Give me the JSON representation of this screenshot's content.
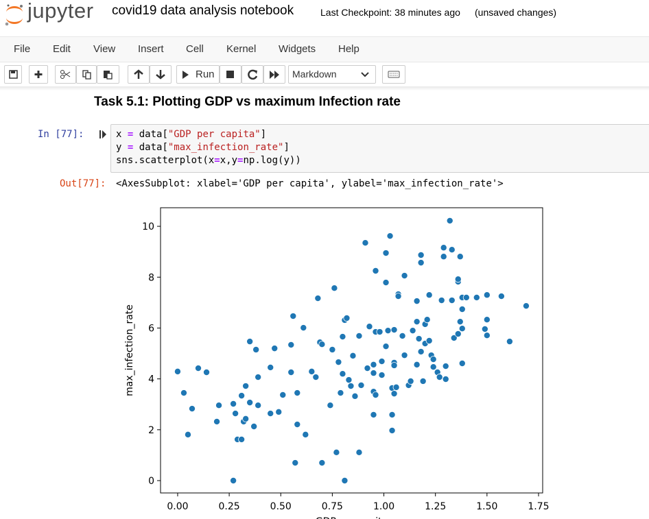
{
  "header": {
    "logo_text": "jupyter",
    "title": "covid19 data analysis notebook",
    "checkpoint": "Last Checkpoint: 38 minutes ago",
    "status": "(unsaved changes)"
  },
  "menu": [
    "File",
    "Edit",
    "View",
    "Insert",
    "Cell",
    "Kernel",
    "Widgets",
    "Help"
  ],
  "toolbar": {
    "run": "Run",
    "cell_type": "Markdown"
  },
  "notebook": {
    "heading": "Task 5.1: Plotting GDP vs maximum Infection rate",
    "input_prompt": "In [77]:",
    "code": [
      [
        "x ",
        "=",
        " data[",
        "\"GDP per capita\"",
        "]"
      ],
      [
        "y ",
        "=",
        " data[",
        "\"max_infection_rate\"",
        "]"
      ],
      [
        "sns.scatterplot(x",
        "=",
        "x,y",
        "=",
        "np.log(y))"
      ]
    ],
    "output_prompt": "Out[77]:",
    "output": "<AxesSubplot: xlabel='GDP per capita', ylabel='max_infection_rate'>"
  },
  "chart_data": {
    "type": "scatter",
    "xlabel": "GDP per capita",
    "ylabel": "max_infection_rate",
    "color": "#1f77b4",
    "x": [
      0.0,
      0.03,
      0.05,
      0.07,
      0.1,
      0.14,
      0.19,
      0.2,
      0.27,
      0.28,
      0.27,
      0.29,
      0.31,
      0.31,
      0.33,
      0.32,
      0.33,
      0.35,
      0.35,
      0.37,
      0.38,
      0.39,
      0.39,
      0.45,
      0.45,
      0.47,
      0.49,
      0.51,
      0.55,
      0.55,
      0.56,
      0.57,
      0.58,
      0.58,
      0.61,
      0.62,
      0.65,
      0.67,
      0.68,
      0.69,
      0.7,
      0.7,
      0.74,
      0.75,
      0.76,
      0.77,
      0.78,
      0.79,
      0.8,
      0.8,
      0.81,
      0.82,
      0.81,
      0.83,
      0.84,
      0.85,
      0.86,
      0.88,
      0.88,
      0.89,
      0.91,
      0.92,
      0.93,
      0.95,
      0.95,
      0.95,
      0.95,
      0.96,
      0.96,
      0.96,
      0.98,
      0.99,
      0.99,
      1.01,
      1.01,
      1.01,
      1.02,
      1.03,
      1.04,
      1.04,
      1.04,
      1.05,
      1.05,
      1.05,
      1.05,
      1.06,
      1.07,
      1.07,
      1.09,
      1.1,
      1.1,
      1.12,
      1.13,
      1.14,
      1.16,
      1.16,
      1.16,
      1.17,
      1.18,
      1.18,
      1.18,
      1.19,
      1.2,
      1.2,
      1.21,
      1.22,
      1.22,
      1.23,
      1.24,
      1.24,
      1.26,
      1.27,
      1.28,
      1.29,
      1.29,
      1.3,
      1.3,
      1.32,
      1.33,
      1.33,
      1.34,
      1.36,
      1.36,
      1.36,
      1.37,
      1.37,
      1.38,
      1.38,
      1.38,
      1.38,
      1.4,
      1.45,
      1.49,
      1.5,
      1.5,
      1.5,
      1.57,
      1.61,
      1.69
    ],
    "values": [
      4.29,
      3.45,
      1.81,
      2.83,
      4.42,
      4.26,
      2.32,
      2.96,
      3.02,
      2.64,
      0.0,
      1.62,
      1.62,
      3.34,
      3.72,
      2.32,
      2.43,
      5.47,
      3.07,
      2.13,
      5.15,
      2.96,
      4.07,
      2.64,
      4.45,
      5.2,
      2.7,
      3.37,
      5.34,
      4.26,
      6.47,
      0.7,
      3.45,
      2.21,
      6.01,
      1.81,
      4.29,
      4.07,
      7.17,
      5.44,
      5.36,
      0.7,
      2.96,
      5.15,
      7.57,
      1.11,
      4.66,
      3.45,
      5.66,
      4.2,
      6.31,
      6.39,
      0.0,
      3.96,
      3.72,
      4.91,
      3.32,
      1.11,
      5.69,
      3.75,
      9.35,
      4.42,
      6.06,
      3.5,
      4.56,
      2.59,
      4.23,
      3.37,
      8.25,
      5.85,
      5.85,
      4.69,
      4.15,
      7.79,
      8.95,
      5.28,
      5.9,
      9.62,
      3.64,
      1.97,
      2.59,
      4.64,
      4.53,
      5.93,
      3.42,
      3.67,
      7.33,
      7.25,
      5.69,
      4.93,
      8.06,
      3.75,
      3.91,
      5.9,
      4.56,
      7.06,
      6.25,
      5.58,
      8.87,
      8.57,
      5.07,
      3.91,
      6.15,
      5.39,
      6.33,
      7.3,
      5.5,
      4.93,
      4.77,
      4.47,
      4.26,
      4.07,
      7.09,
      9.16,
      8.81,
      4.5,
      3.99,
      10.22,
      7.09,
      9.08,
      5.61,
      7.82,
      7.92,
      5.77,
      8.81,
      6.25,
      7.2,
      4.61,
      5.98,
      6.74,
      7.2,
      7.2,
      5.96,
      7.3,
      6.33,
      5.71,
      7.25,
      5.47,
      6.87
    ],
    "xlim": [
      -0.083,
      1.77
    ],
    "ylim": [
      -0.485,
      10.73
    ],
    "xticks": [
      {
        "value": 0,
        "label": "0.00"
      },
      {
        "value": 0.25,
        "label": "0.25"
      },
      {
        "value": 0.5,
        "label": "0.50"
      },
      {
        "value": 0.75,
        "label": "0.75"
      },
      {
        "value": 1,
        "label": "1.00"
      },
      {
        "value": 1.25,
        "label": "1.25"
      },
      {
        "value": 1.5,
        "label": "1.50"
      },
      {
        "value": 1.75,
        "label": "1.75"
      }
    ],
    "yticks": [
      0,
      2,
      4,
      6,
      8,
      10
    ]
  }
}
